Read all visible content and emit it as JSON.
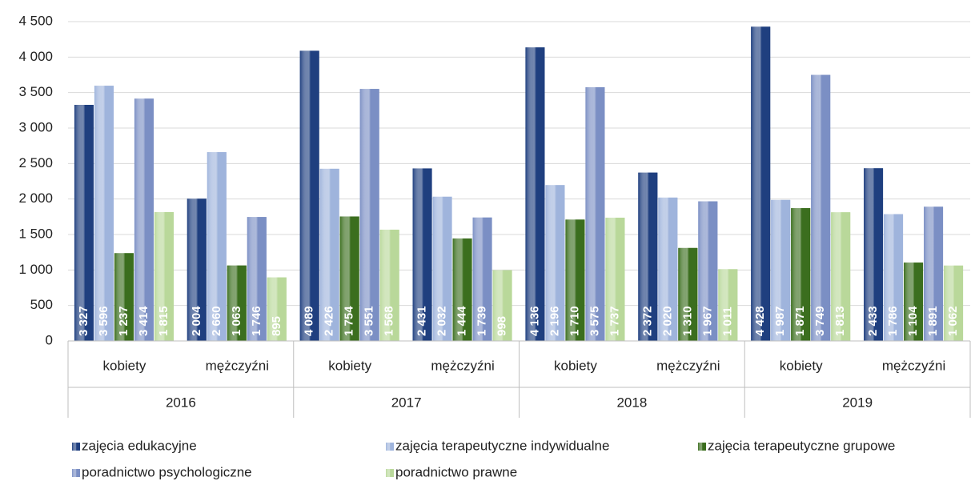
{
  "chart_data": {
    "type": "bar",
    "categories": [
      "kobiety",
      "mężczyźni",
      "kobiety",
      "mężczyźni",
      "kobiety",
      "mężczyźni",
      "kobiety",
      "mężczyźni"
    ],
    "category_groups": [
      "2016",
      "2017",
      "2018",
      "2019"
    ],
    "series": [
      {
        "name": "zajęcia edukacyjne",
        "color": "#1f3f7f",
        "values": [
          3327,
          2004,
          4089,
          2431,
          4136,
          2372,
          4428,
          2433
        ],
        "value_labels": [
          "3 327",
          "2 004",
          "4 089",
          "2 431",
          "4 136",
          "2 372",
          "4 428",
          "2 433"
        ]
      },
      {
        "name": "zajęcia terapeutyczne indywidualne",
        "color": "#9fb4dc",
        "values": [
          3596,
          2660,
          2426,
          2032,
          2196,
          2020,
          1987,
          1786
        ],
        "value_labels": [
          "3 596",
          "2 660",
          "2 426",
          "2 032",
          "2 196",
          "2 020",
          "1 987",
          "1 786"
        ]
      },
      {
        "name": "zajęcia terapeutyczne grupowe",
        "color": "#3b6e1e",
        "values": [
          1237,
          1063,
          1754,
          1444,
          1710,
          1310,
          1871,
          1104
        ],
        "value_labels": [
          "1 237",
          "1 063",
          "1 754",
          "1 444",
          "1 710",
          "1 310",
          "1 871",
          "1 104"
        ]
      },
      {
        "name": "poradnictwo psychologiczne",
        "color": "#7b8fc4",
        "values": [
          3414,
          1746,
          3551,
          1739,
          3575,
          1967,
          3749,
          1891
        ],
        "value_labels": [
          "3 414",
          "1 746",
          "3 551",
          "1 739",
          "3 575",
          "1 967",
          "3 749",
          "1 891"
        ]
      },
      {
        "name": "poradnictwo prawne",
        "color": "#b9d89a",
        "values": [
          1815,
          895,
          1568,
          998,
          1737,
          1011,
          1813,
          1062
        ],
        "value_labels": [
          "1 815",
          "895",
          "1 568",
          "998",
          "1 737",
          "1 011",
          "1 813",
          "1 062"
        ]
      }
    ],
    "ylim": [
      0,
      4500
    ],
    "yticks": [
      0,
      500,
      {
        "value": 1000,
        "label": "1 000"
      },
      {
        "value": 1500,
        "label": "1 500"
      },
      {
        "value": 2000,
        "label": "2 000"
      },
      {
        "value": 2500,
        "label": "2 500"
      },
      {
        "value": 3000,
        "label": "3 000"
      },
      {
        "value": 3500,
        "label": "3 500"
      },
      {
        "value": 4000,
        "label": "4 000"
      },
      {
        "value": 4500,
        "label": "4 500"
      }
    ],
    "grid": true
  }
}
